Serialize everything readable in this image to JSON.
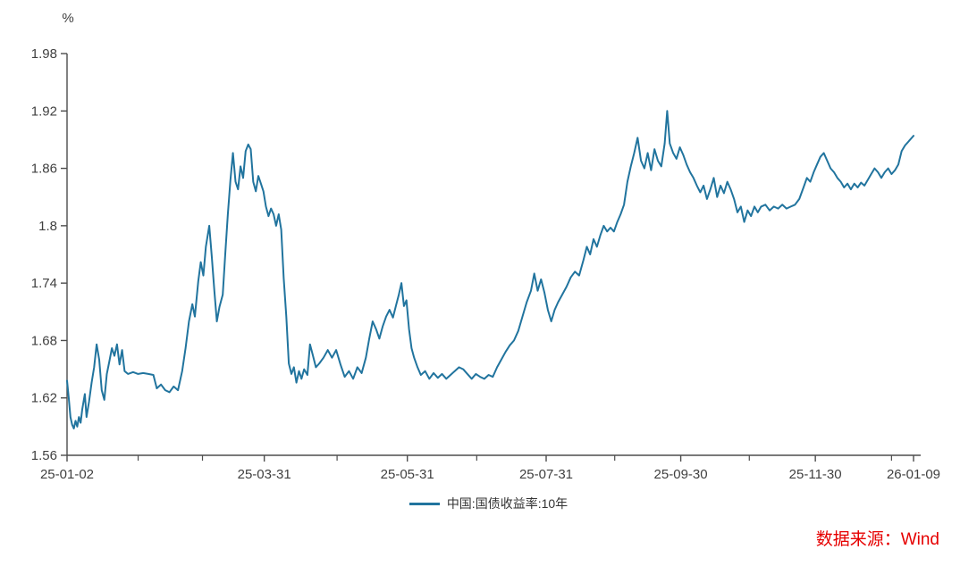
{
  "chart": {
    "unit": "%",
    "legend_label": "中国:国债收益率:10年",
    "source_label": "数据来源：Wind"
  },
  "colors": {
    "line": "#21749E",
    "axis": "#4D4D4D",
    "tick_label": "#404040",
    "legend_text": "#333333",
    "source_text": "#E60000",
    "background": "#FFFFFF"
  },
  "chart_data": {
    "type": "line",
    "title": "",
    "xlabel": "",
    "ylabel": "%",
    "ylim": [
      1.56,
      1.98
    ],
    "grid": false,
    "legend_position": "bottom-center",
    "y_ticks": [
      "1.56",
      "1.62",
      "1.68",
      "1.74",
      "1.8",
      "1.86",
      "1.92",
      "1.98"
    ],
    "x_ticks": [
      {
        "label": "25-01-02",
        "f": 0.0
      },
      {
        "label": "25-03-31",
        "f": 0.233
      },
      {
        "label": "25-05-31",
        "f": 0.402
      },
      {
        "label": "25-07-31",
        "f": 0.566
      },
      {
        "label": "25-09-30",
        "f": 0.725
      },
      {
        "label": "25-11-30",
        "f": 0.884
      },
      {
        "label": "26-01-09",
        "f": 1.0
      }
    ],
    "x_minor_ticks": [
      0.084,
      0.16,
      0.319,
      0.484,
      0.647,
      0.806,
      0.974
    ],
    "series": [
      {
        "name": "中国:国债收益率:10年",
        "color": "#21749E",
        "points": [
          [
            0.0,
            1.638
          ],
          [
            0.002,
            1.62
          ],
          [
            0.004,
            1.6
          ],
          [
            0.006,
            1.592
          ],
          [
            0.008,
            1.588
          ],
          [
            0.01,
            1.596
          ],
          [
            0.012,
            1.59
          ],
          [
            0.014,
            1.6
          ],
          [
            0.016,
            1.594
          ],
          [
            0.018,
            1.608
          ],
          [
            0.021,
            1.624
          ],
          [
            0.023,
            1.6
          ],
          [
            0.026,
            1.616
          ],
          [
            0.029,
            1.636
          ],
          [
            0.032,
            1.652
          ],
          [
            0.035,
            1.676
          ],
          [
            0.038,
            1.66
          ],
          [
            0.041,
            1.628
          ],
          [
            0.044,
            1.618
          ],
          [
            0.047,
            1.645
          ],
          [
            0.05,
            1.658
          ],
          [
            0.053,
            1.672
          ],
          [
            0.056,
            1.664
          ],
          [
            0.059,
            1.676
          ],
          [
            0.062,
            1.655
          ],
          [
            0.065,
            1.67
          ],
          [
            0.068,
            1.648
          ],
          [
            0.072,
            1.645
          ],
          [
            0.078,
            1.647
          ],
          [
            0.084,
            1.645
          ],
          [
            0.09,
            1.646
          ],
          [
            0.096,
            1.645
          ],
          [
            0.102,
            1.644
          ],
          [
            0.106,
            1.63
          ],
          [
            0.111,
            1.634
          ],
          [
            0.116,
            1.628
          ],
          [
            0.121,
            1.626
          ],
          [
            0.126,
            1.632
          ],
          [
            0.131,
            1.628
          ],
          [
            0.136,
            1.648
          ],
          [
            0.14,
            1.672
          ],
          [
            0.144,
            1.7
          ],
          [
            0.148,
            1.718
          ],
          [
            0.151,
            1.705
          ],
          [
            0.155,
            1.742
          ],
          [
            0.158,
            1.762
          ],
          [
            0.161,
            1.748
          ],
          [
            0.164,
            1.778
          ],
          [
            0.168,
            1.8
          ],
          [
            0.171,
            1.768
          ],
          [
            0.174,
            1.732
          ],
          [
            0.177,
            1.7
          ],
          [
            0.18,
            1.715
          ],
          [
            0.184,
            1.728
          ],
          [
            0.187,
            1.772
          ],
          [
            0.19,
            1.812
          ],
          [
            0.193,
            1.848
          ],
          [
            0.196,
            1.876
          ],
          [
            0.199,
            1.846
          ],
          [
            0.202,
            1.838
          ],
          [
            0.205,
            1.862
          ],
          [
            0.208,
            1.85
          ],
          [
            0.211,
            1.878
          ],
          [
            0.214,
            1.885
          ],
          [
            0.217,
            1.88
          ],
          [
            0.22,
            1.846
          ],
          [
            0.223,
            1.836
          ],
          [
            0.226,
            1.852
          ],
          [
            0.229,
            1.844
          ],
          [
            0.232,
            1.836
          ],
          [
            0.235,
            1.82
          ],
          [
            0.238,
            1.81
          ],
          [
            0.241,
            1.818
          ],
          [
            0.244,
            1.812
          ],
          [
            0.247,
            1.8
          ],
          [
            0.25,
            1.812
          ],
          [
            0.253,
            1.796
          ],
          [
            0.256,
            1.745
          ],
          [
            0.259,
            1.705
          ],
          [
            0.262,
            1.656
          ],
          [
            0.265,
            1.645
          ],
          [
            0.268,
            1.652
          ],
          [
            0.271,
            1.636
          ],
          [
            0.274,
            1.648
          ],
          [
            0.277,
            1.64
          ],
          [
            0.28,
            1.65
          ],
          [
            0.284,
            1.644
          ],
          [
            0.287,
            1.676
          ],
          [
            0.29,
            1.666
          ],
          [
            0.294,
            1.652
          ],
          [
            0.298,
            1.656
          ],
          [
            0.303,
            1.662
          ],
          [
            0.308,
            1.67
          ],
          [
            0.313,
            1.662
          ],
          [
            0.318,
            1.67
          ],
          [
            0.323,
            1.655
          ],
          [
            0.328,
            1.642
          ],
          [
            0.333,
            1.648
          ],
          [
            0.338,
            1.64
          ],
          [
            0.343,
            1.652
          ],
          [
            0.348,
            1.646
          ],
          [
            0.353,
            1.662
          ],
          [
            0.357,
            1.682
          ],
          [
            0.361,
            1.7
          ],
          [
            0.365,
            1.692
          ],
          [
            0.369,
            1.682
          ],
          [
            0.373,
            1.695
          ],
          [
            0.377,
            1.705
          ],
          [
            0.381,
            1.712
          ],
          [
            0.385,
            1.704
          ],
          [
            0.389,
            1.718
          ],
          [
            0.392,
            1.728
          ],
          [
            0.395,
            1.74
          ],
          [
            0.398,
            1.716
          ],
          [
            0.401,
            1.722
          ],
          [
            0.404,
            1.692
          ],
          [
            0.407,
            1.672
          ],
          [
            0.41,
            1.662
          ],
          [
            0.414,
            1.652
          ],
          [
            0.418,
            1.644
          ],
          [
            0.423,
            1.648
          ],
          [
            0.428,
            1.64
          ],
          [
            0.433,
            1.646
          ],
          [
            0.438,
            1.641
          ],
          [
            0.443,
            1.645
          ],
          [
            0.448,
            1.64
          ],
          [
            0.453,
            1.644
          ],
          [
            0.458,
            1.648
          ],
          [
            0.463,
            1.652
          ],
          [
            0.468,
            1.65
          ],
          [
            0.473,
            1.645
          ],
          [
            0.478,
            1.64
          ],
          [
            0.483,
            1.645
          ],
          [
            0.488,
            1.642
          ],
          [
            0.493,
            1.64
          ],
          [
            0.498,
            1.644
          ],
          [
            0.503,
            1.642
          ],
          [
            0.508,
            1.652
          ],
          [
            0.513,
            1.66
          ],
          [
            0.518,
            1.668
          ],
          [
            0.523,
            1.675
          ],
          [
            0.528,
            1.68
          ],
          [
            0.533,
            1.69
          ],
          [
            0.538,
            1.705
          ],
          [
            0.543,
            1.72
          ],
          [
            0.548,
            1.732
          ],
          [
            0.552,
            1.75
          ],
          [
            0.556,
            1.732
          ],
          [
            0.56,
            1.744
          ],
          [
            0.564,
            1.73
          ],
          [
            0.568,
            1.712
          ],
          [
            0.572,
            1.7
          ],
          [
            0.576,
            1.712
          ],
          [
            0.58,
            1.72
          ],
          [
            0.585,
            1.728
          ],
          [
            0.59,
            1.736
          ],
          [
            0.595,
            1.746
          ],
          [
            0.6,
            1.752
          ],
          [
            0.605,
            1.748
          ],
          [
            0.61,
            1.764
          ],
          [
            0.614,
            1.778
          ],
          [
            0.618,
            1.77
          ],
          [
            0.622,
            1.786
          ],
          [
            0.626,
            1.778
          ],
          [
            0.63,
            1.79
          ],
          [
            0.634,
            1.8
          ],
          [
            0.638,
            1.794
          ],
          [
            0.642,
            1.798
          ],
          [
            0.646,
            1.794
          ],
          [
            0.65,
            1.804
          ],
          [
            0.654,
            1.812
          ],
          [
            0.658,
            1.822
          ],
          [
            0.662,
            1.846
          ],
          [
            0.666,
            1.862
          ],
          [
            0.67,
            1.876
          ],
          [
            0.674,
            1.892
          ],
          [
            0.678,
            1.868
          ],
          [
            0.682,
            1.86
          ],
          [
            0.686,
            1.876
          ],
          [
            0.69,
            1.858
          ],
          [
            0.694,
            1.88
          ],
          [
            0.698,
            1.868
          ],
          [
            0.702,
            1.862
          ],
          [
            0.706,
            1.886
          ],
          [
            0.709,
            1.92
          ],
          [
            0.712,
            1.886
          ],
          [
            0.716,
            1.876
          ],
          [
            0.72,
            1.87
          ],
          [
            0.724,
            1.882
          ],
          [
            0.728,
            1.874
          ],
          [
            0.732,
            1.864
          ],
          [
            0.736,
            1.856
          ],
          [
            0.74,
            1.85
          ],
          [
            0.744,
            1.842
          ],
          [
            0.748,
            1.835
          ],
          [
            0.752,
            1.842
          ],
          [
            0.756,
            1.828
          ],
          [
            0.76,
            1.838
          ],
          [
            0.764,
            1.85
          ],
          [
            0.768,
            1.83
          ],
          [
            0.772,
            1.842
          ],
          [
            0.776,
            1.834
          ],
          [
            0.78,
            1.846
          ],
          [
            0.784,
            1.838
          ],
          [
            0.788,
            1.828
          ],
          [
            0.792,
            1.814
          ],
          [
            0.796,
            1.82
          ],
          [
            0.8,
            1.804
          ],
          [
            0.804,
            1.816
          ],
          [
            0.808,
            1.81
          ],
          [
            0.812,
            1.82
          ],
          [
            0.816,
            1.814
          ],
          [
            0.82,
            1.82
          ],
          [
            0.825,
            1.822
          ],
          [
            0.83,
            1.816
          ],
          [
            0.835,
            1.82
          ],
          [
            0.84,
            1.818
          ],
          [
            0.845,
            1.822
          ],
          [
            0.85,
            1.818
          ],
          [
            0.855,
            1.82
          ],
          [
            0.86,
            1.822
          ],
          [
            0.865,
            1.828
          ],
          [
            0.87,
            1.84
          ],
          [
            0.874,
            1.85
          ],
          [
            0.878,
            1.846
          ],
          [
            0.882,
            1.856
          ],
          [
            0.886,
            1.864
          ],
          [
            0.89,
            1.872
          ],
          [
            0.894,
            1.876
          ],
          [
            0.898,
            1.868
          ],
          [
            0.902,
            1.86
          ],
          [
            0.906,
            1.856
          ],
          [
            0.91,
            1.85
          ],
          [
            0.914,
            1.846
          ],
          [
            0.918,
            1.84
          ],
          [
            0.922,
            1.844
          ],
          [
            0.926,
            1.838
          ],
          [
            0.93,
            1.844
          ],
          [
            0.934,
            1.84
          ],
          [
            0.938,
            1.845
          ],
          [
            0.942,
            1.842
          ],
          [
            0.946,
            1.848
          ],
          [
            0.95,
            1.854
          ],
          [
            0.954,
            1.86
          ],
          [
            0.958,
            1.856
          ],
          [
            0.962,
            1.85
          ],
          [
            0.966,
            1.856
          ],
          [
            0.97,
            1.86
          ],
          [
            0.974,
            1.854
          ],
          [
            0.978,
            1.858
          ],
          [
            0.982,
            1.864
          ],
          [
            0.986,
            1.878
          ],
          [
            0.99,
            1.884
          ],
          [
            0.994,
            1.888
          ],
          [
            1.0,
            1.894
          ]
        ]
      }
    ]
  }
}
